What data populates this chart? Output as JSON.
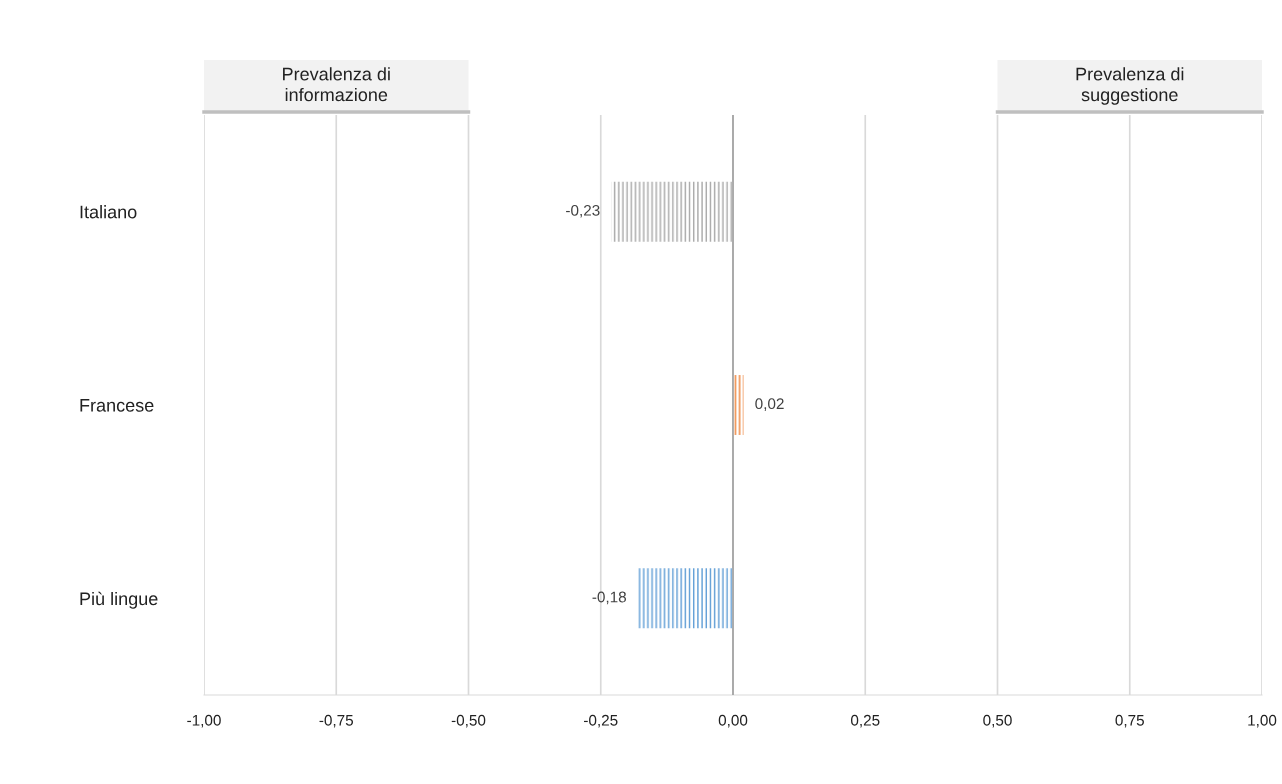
{
  "chart_data": {
    "type": "bar",
    "orientation": "horizontal",
    "categories": [
      "Italiano",
      "Francese",
      "Più lingue"
    ],
    "values": [
      -0.23,
      0.02,
      -0.18
    ],
    "colors": [
      "#a6a6a6",
      "#ed7d31",
      "#5b9bd5"
    ],
    "value_labels": [
      "-0,23",
      "0,02",
      "-0,18"
    ],
    "xlim": [
      -1,
      1
    ],
    "xticks": [
      {
        "value": -1,
        "label": "-1,00"
      },
      {
        "value": -0.75,
        "label": "-0,75"
      },
      {
        "value": -0.5,
        "label": "-0,50"
      },
      {
        "value": -0.25,
        "label": "-0,25"
      },
      {
        "value": 0,
        "label": "0,00"
      },
      {
        "value": 0.25,
        "label": "0,25"
      },
      {
        "value": 0.5,
        "label": "0,50"
      },
      {
        "value": 0.75,
        "label": "0,75"
      },
      {
        "value": 1,
        "label": "1,00"
      }
    ],
    "grid": "x",
    "annotations": [
      "Prevalenza di\ninformazione",
      "Prevalenza di\nsuggestione"
    ]
  }
}
